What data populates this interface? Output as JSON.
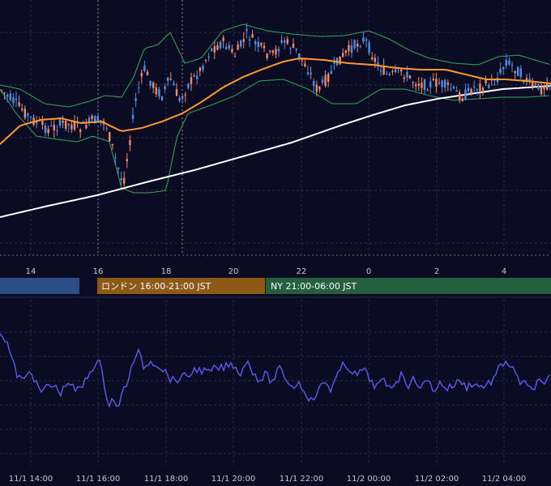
{
  "chart_data": [
    {
      "type": "candlestick",
      "panel": "main",
      "x_ticks": [
        "14",
        "16",
        "18",
        "20",
        "22",
        "0",
        "2",
        "4"
      ],
      "overlays": [
        {
          "indicator": "moving-average-fast",
          "color": "#ff9a2e"
        },
        {
          "indicator": "moving-average-slow",
          "color": "#ffffff"
        },
        {
          "indicator": "bollinger-bands",
          "color": "#34a853"
        }
      ],
      "up_color": "#4f8fe6",
      "down_color": "#f08a6e",
      "grid": true
    },
    {
      "type": "band",
      "panel": "sessions",
      "sessions": [
        {
          "label": "",
          "color": "#2a4f88"
        },
        {
          "label": "ロンドン 16:00-21:00 JST",
          "color": "#8c5a16"
        },
        {
          "label": "NY 21:00-06:00 JST",
          "color": "#24603e"
        }
      ]
    },
    {
      "type": "line",
      "panel": "oscillator",
      "color": "#5c5cf0",
      "x_ticks": [
        "11/1 14:00",
        "11/1 16:00",
        "11/1 18:00",
        "11/1 20:00",
        "11/1 22:00",
        "11/2 00:00",
        "11/2 02:00",
        "11/2 04:00"
      ],
      "grid": true
    }
  ]
}
